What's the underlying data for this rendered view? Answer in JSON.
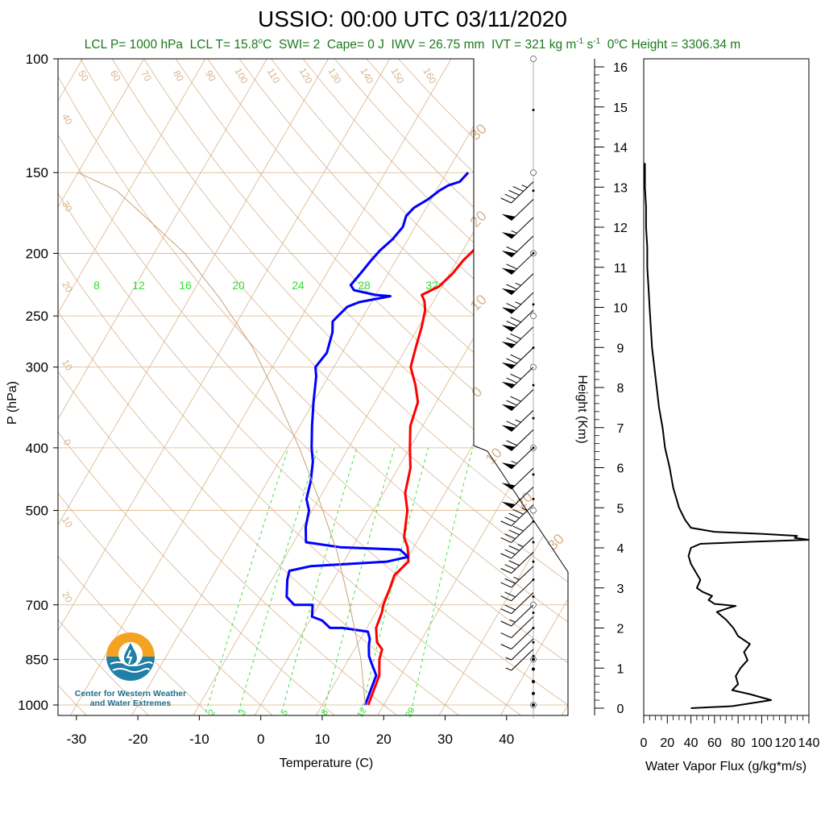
{
  "title": "USSIO: 00:00 UTC 03/11/2020",
  "stats": {
    "lcl_p": "LCL P= 1000 hPa",
    "lcl_t_pre": "LCL T= 15.8",
    "lcl_t_unit": "C",
    "swi": "SWI= 2",
    "cape": "Cape= 0 J",
    "iwv": "IWV = 26.75 mm",
    "ivt_pre": "IVT = 321 kg m",
    "ivt_sup1": "-1",
    "ivt_mid": " s",
    "ivt_sup2": "-1",
    "zero_pre": "0",
    "zero_post": "C Height = 3306.34 m"
  },
  "logo": {
    "caption_line1": "Center for Western Weather",
    "caption_line2": "and Water Extremes"
  },
  "colors": {
    "temperature": "#ff0000",
    "dewpoint": "#0000ff",
    "isotherm": "#d8b48c",
    "mixing_ratio": "#33dd33",
    "title_green": "#1a7a1a",
    "flux": "#000000"
  },
  "chart_data": [
    {
      "type": "line",
      "title": "",
      "xlabel": "Temperature (C)",
      "ylabel": "P (hPa)",
      "x_ticks": [
        "-30",
        "-20",
        "-10",
        "0",
        "10",
        "20",
        "30",
        "40"
      ],
      "x_tick_values": [
        -30,
        -20,
        -10,
        0,
        10,
        20,
        30,
        40
      ],
      "y_ticks": [
        "100",
        "150",
        "200",
        "250",
        "300",
        "400",
        "500",
        "700",
        "850",
        "1000"
      ],
      "y_tick_values": [
        100,
        150,
        200,
        250,
        300,
        400,
        500,
        700,
        850,
        1000
      ],
      "y_scale": "log",
      "xlim": [
        -33,
        50
      ],
      "ylim": [
        1050,
        100
      ],
      "mixing_ratio_labels_top": [
        "8",
        "12",
        "16",
        "20",
        "24",
        "28",
        "32"
      ],
      "mixing_ratio_labels_bottom": [
        "2",
        "3",
        "5",
        "8",
        "12",
        "20"
      ],
      "isotherm_labels": [
        "50",
        "60",
        "70",
        "80",
        "90",
        "100",
        "110",
        "120",
        "130",
        "140",
        "150",
        "160"
      ],
      "left_labels": [
        "40",
        "30",
        "20",
        "10",
        "0",
        "10",
        "20"
      ],
      "right_labels": [
        "30",
        "20",
        "10",
        "0",
        "10",
        "20",
        "30"
      ],
      "series": [
        {
          "name": "Temperature",
          "color": "#ff0000",
          "points": [
            [
              17.5,
              1000
            ],
            [
              17.2,
              970
            ],
            [
              16.5,
              900
            ],
            [
              15.0,
              850
            ],
            [
              14.5,
              820
            ],
            [
              13.0,
              800
            ],
            [
              11.5,
              760
            ],
            [
              11.0,
              720
            ],
            [
              10.5,
              700
            ],
            [
              10.0,
              660
            ],
            [
              9.5,
              630
            ],
            [
              10.5,
              600
            ],
            [
              9.8,
              585
            ],
            [
              9.0,
              570
            ],
            [
              7.5,
              550
            ],
            [
              5.5,
              500
            ],
            [
              3.5,
              470
            ],
            [
              2.0,
              430
            ],
            [
              0.0,
              400
            ],
            [
              -2.0,
              370
            ],
            [
              -3.0,
              340
            ],
            [
              -5.0,
              320
            ],
            [
              -7.5,
              300
            ],
            [
              -8.5,
              280
            ],
            [
              -9.5,
              260
            ],
            [
              -10.5,
              245
            ],
            [
              -11.5,
              237
            ],
            [
              -12.5,
              232
            ],
            [
              -10.5,
              225
            ],
            [
              -9.5,
              215
            ],
            [
              -9.0,
              205
            ],
            [
              -8.5,
              200
            ],
            [
              -8.0,
              195
            ],
            [
              -7.5,
              185
            ],
            [
              -7.0,
              175
            ],
            [
              -7.5,
              168
            ],
            [
              -6.5,
              165
            ],
            [
              -4.0,
              160
            ],
            [
              -3.0,
              156
            ],
            [
              -1.5,
              150
            ]
          ]
        },
        {
          "name": "Dewpoint",
          "color": "#0000ff",
          "points": [
            [
              17.0,
              1000
            ],
            [
              16.5,
              950
            ],
            [
              16.0,
              900
            ],
            [
              14.0,
              860
            ],
            [
              13.0,
              840
            ],
            [
              12.0,
              810
            ],
            [
              11.5,
              790
            ],
            [
              10.5,
              770
            ],
            [
              6.0,
              760
            ],
            [
              4.0,
              760
            ],
            [
              2.0,
              740
            ],
            [
              0.0,
              730
            ],
            [
              -1.0,
              700
            ],
            [
              -4.0,
              700
            ],
            [
              -6.0,
              680
            ],
            [
              -7.5,
              640
            ],
            [
              -8.0,
              620
            ],
            [
              -5.0,
              610
            ],
            [
              7.0,
              600
            ],
            [
              10.0,
              590
            ],
            [
              8.0,
              575
            ],
            [
              -2.0,
              570
            ],
            [
              -8.0,
              560
            ],
            [
              -9.5,
              530
            ],
            [
              -10.5,
              500
            ],
            [
              -12.0,
              480
            ],
            [
              -13.0,
              450
            ],
            [
              -14.5,
              420
            ],
            [
              -16.0,
              400
            ],
            [
              -18.0,
              370
            ],
            [
              -20.0,
              340
            ],
            [
              -22.0,
              310
            ],
            [
              -23.0,
              300
            ],
            [
              -22.5,
              285
            ],
            [
              -23.0,
              275
            ],
            [
              -23.5,
              265
            ],
            [
              -24.5,
              255
            ],
            [
              -24.0,
              248
            ],
            [
              -23.5,
              242
            ],
            [
              -22.0,
              238
            ],
            [
              -17.5,
              233
            ],
            [
              -20.0,
              232
            ],
            [
              -24.0,
              228
            ],
            [
              -25.0,
              224
            ],
            [
              -24.5,
              215
            ],
            [
              -24.0,
              205
            ],
            [
              -23.5,
              198
            ],
            [
              -22.5,
              190
            ],
            [
              -22.0,
              182
            ],
            [
              -22.5,
              175
            ],
            [
              -22.0,
              170
            ],
            [
              -20.5,
              165
            ],
            [
              -19.5,
              160
            ],
            [
              -18.5,
              157
            ],
            [
              -17.0,
              155
            ],
            [
              -16.5,
              150
            ]
          ]
        },
        {
          "name": "Parcel",
          "color": "#c8a07a",
          "points": [
            [
              17.0,
              1000
            ],
            [
              12.0,
              850
            ],
            [
              5.0,
              700
            ],
            [
              -2.0,
              580
            ],
            [
              -10.0,
              480
            ],
            [
              -18.0,
              400
            ],
            [
              -27.0,
              330
            ],
            [
              -35.0,
              280
            ],
            [
              -45.0,
              235
            ],
            [
              -55.0,
              200
            ],
            [
              -63.0,
              180
            ],
            [
              -72.0,
              160
            ],
            [
              -80.0,
              150
            ]
          ]
        }
      ],
      "wind_barbs": [
        {
          "pressure": 1000,
          "speed_kt": 0
        },
        {
          "pressure": 960,
          "speed_kt": 0
        },
        {
          "pressure": 920,
          "speed_kt": 0
        },
        {
          "pressure": 880,
          "speed_kt": 0
        },
        {
          "pressure": 850,
          "speed_kt": 0
        },
        {
          "pressure": 820,
          "speed_kt": 5
        },
        {
          "pressure": 790,
          "speed_kt": 5
        },
        {
          "pressure": 760,
          "speed_kt": 10
        },
        {
          "pressure": 730,
          "speed_kt": 10
        },
        {
          "pressure": 700,
          "speed_kt": 15
        },
        {
          "pressure": 670,
          "speed_kt": 20
        },
        {
          "pressure": 640,
          "speed_kt": 20
        },
        {
          "pressure": 610,
          "speed_kt": 25
        },
        {
          "pressure": 580,
          "speed_kt": 30
        },
        {
          "pressure": 550,
          "speed_kt": 35
        },
        {
          "pressure": 520,
          "speed_kt": 40
        },
        {
          "pressure": 490,
          "speed_kt": 45
        },
        {
          "pressure": 460,
          "speed_kt": 50
        },
        {
          "pressure": 430,
          "speed_kt": 50
        },
        {
          "pressure": 400,
          "speed_kt": 55
        },
        {
          "pressure": 375,
          "speed_kt": 60
        },
        {
          "pressure": 350,
          "speed_kt": 65
        },
        {
          "pressure": 325,
          "speed_kt": 70
        },
        {
          "pressure": 300,
          "speed_kt": 70
        },
        {
          "pressure": 280,
          "speed_kt": 70
        },
        {
          "pressure": 260,
          "speed_kt": 70
        },
        {
          "pressure": 245,
          "speed_kt": 70
        },
        {
          "pressure": 230,
          "speed_kt": 65
        },
        {
          "pressure": 215,
          "speed_kt": 65
        },
        {
          "pressure": 200,
          "speed_kt": 60
        },
        {
          "pressure": 188,
          "speed_kt": 60
        },
        {
          "pressure": 176,
          "speed_kt": 55
        },
        {
          "pressure": 165,
          "speed_kt": 50
        },
        {
          "pressure": 155,
          "speed_kt": 45
        }
      ]
    },
    {
      "type": "line",
      "title": "",
      "xlabel": "Water Vapor Flux (g/kg*m/s)",
      "ylabel": "Height (Km)",
      "x_ticks": [
        "0",
        "20",
        "40",
        "60",
        "80",
        "100",
        "120",
        "140"
      ],
      "x_tick_values": [
        0,
        20,
        40,
        60,
        80,
        100,
        120,
        140
      ],
      "y_ticks": [
        "0",
        "1",
        "2",
        "3",
        "4",
        "5",
        "6",
        "7",
        "8",
        "9",
        "10",
        "11",
        "12",
        "13",
        "14",
        "15",
        "16"
      ],
      "y_tick_values": [
        0,
        1,
        2,
        3,
        4,
        5,
        6,
        7,
        8,
        9,
        10,
        11,
        12,
        13,
        14,
        15,
        16
      ],
      "xlim": [
        0,
        140
      ],
      "ylim": [
        -0.3,
        16.4
      ],
      "series": [
        {
          "name": "Water Vapor Flux",
          "points": [
            [
              40,
              0.0
            ],
            [
              75,
              0.05
            ],
            [
              108,
              0.2
            ],
            [
              90,
              0.35
            ],
            [
              75,
              0.45
            ],
            [
              80,
              0.6
            ],
            [
              78,
              0.8
            ],
            [
              82,
              1.0
            ],
            [
              88,
              1.2
            ],
            [
              85,
              1.4
            ],
            [
              90,
              1.6
            ],
            [
              80,
              1.8
            ],
            [
              76,
              2.0
            ],
            [
              70,
              2.2
            ],
            [
              62,
              2.4
            ],
            [
              72,
              2.5
            ],
            [
              78,
              2.55
            ],
            [
              60,
              2.6
            ],
            [
              55,
              2.7
            ],
            [
              58,
              2.8
            ],
            [
              50,
              2.9
            ],
            [
              45,
              3.0
            ],
            [
              48,
              3.2
            ],
            [
              44,
              3.4
            ],
            [
              40,
              3.6
            ],
            [
              38,
              3.8
            ],
            [
              40,
              4.0
            ],
            [
              48,
              4.1
            ],
            [
              90,
              4.15
            ],
            [
              140,
              4.2
            ],
            [
              128,
              4.25
            ],
            [
              130,
              4.3
            ],
            [
              100,
              4.35
            ],
            [
              60,
              4.4
            ],
            [
              40,
              4.5
            ],
            [
              35,
              4.7
            ],
            [
              30,
              5.0
            ],
            [
              25,
              5.5
            ],
            [
              22,
              6.0
            ],
            [
              18,
              6.5
            ],
            [
              16,
              7.0
            ],
            [
              13,
              7.5
            ],
            [
              11,
              8.0
            ],
            [
              9,
              8.5
            ],
            [
              7,
              9.0
            ],
            [
              6,
              9.5
            ],
            [
              5,
              10.0
            ],
            [
              4,
              10.5
            ],
            [
              3,
              11.0
            ],
            [
              3,
              11.5
            ],
            [
              2,
              12.0
            ],
            [
              2,
              12.5
            ],
            [
              1,
              13.0
            ],
            [
              1,
              13.6
            ]
          ]
        }
      ]
    }
  ]
}
